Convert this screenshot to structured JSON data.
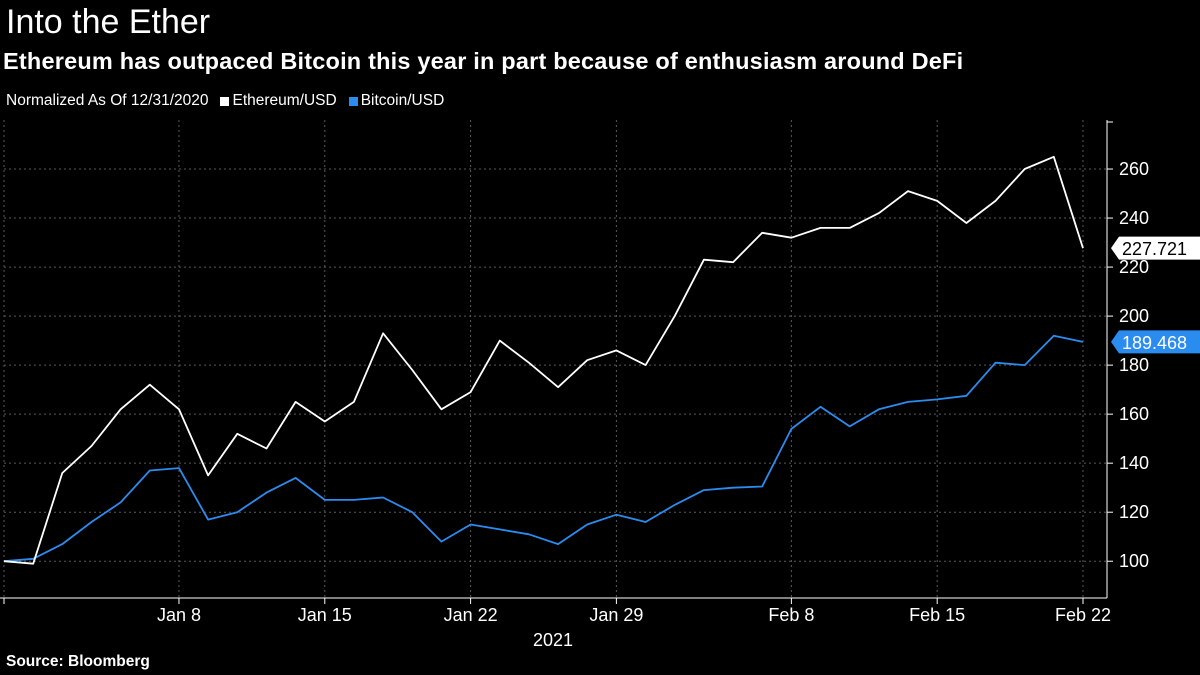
{
  "header": {
    "title": "Into the Ether",
    "subtitle": "Ethereum has outpaced Bitcoin this year in part because of enthusiasm around DeFi"
  },
  "legend": {
    "note": "Normalized As Of 12/31/2020",
    "items": [
      {
        "name": "Ethereum/USD",
        "color": "#ffffff"
      },
      {
        "name": "Bitcoin/USD",
        "color": "#2b8cf0"
      }
    ]
  },
  "source": "Source: Bloomberg",
  "chart_data": {
    "type": "line",
    "title": "Into the Ether",
    "subtitle": "Ethereum has outpaced Bitcoin this year in part because of enthusiasm around DeFi",
    "xlabel": "2021",
    "ylabel": "",
    "x": [
      0,
      1,
      2,
      3,
      4,
      5,
      6,
      7,
      8,
      9,
      10,
      11,
      12,
      13,
      14,
      15,
      16,
      17,
      18,
      19,
      20,
      21,
      22,
      23,
      24,
      25,
      26,
      27,
      28,
      29,
      30,
      31,
      32,
      33,
      34,
      35,
      36,
      37
    ],
    "x_ticks": [
      {
        "label": "Jan 8",
        "index": 6
      },
      {
        "label": "Jan 15",
        "index": 11
      },
      {
        "label": "Jan 22",
        "index": 16
      },
      {
        "label": "Jan 29",
        "index": 21
      },
      {
        "label": "Feb 8",
        "index": 27
      },
      {
        "label": "Feb 15",
        "index": 32
      },
      {
        "label": "Feb 22",
        "index": 37
      }
    ],
    "year_label": "2021",
    "ylim": [
      85,
      280
    ],
    "y_ticks": [
      100,
      120,
      140,
      160,
      180,
      200,
      220,
      240,
      260
    ],
    "grid": true,
    "series": [
      {
        "name": "Ethereum/USD",
        "color": "#ffffff",
        "values": [
          100,
          99,
          136,
          147,
          162,
          172,
          162,
          135,
          152,
          146,
          165,
          157,
          165,
          193,
          178,
          162,
          169,
          190,
          181,
          171,
          182,
          186,
          180,
          200,
          223,
          222,
          234,
          232,
          236,
          236,
          242,
          251,
          247,
          238,
          247,
          260,
          265,
          227.721
        ],
        "last_label": "227.721"
      },
      {
        "name": "Bitcoin/USD",
        "color": "#2b8cf0",
        "values": [
          100,
          101,
          107,
          116,
          124,
          137,
          138,
          117,
          120,
          128,
          134,
          125,
          125,
          126,
          120,
          108,
          115,
          113,
          111,
          107,
          115,
          119,
          116,
          123,
          129,
          130,
          130.5,
          154,
          163,
          155,
          162,
          165,
          166,
          167.5,
          181,
          180,
          192,
          189.468
        ],
        "last_label": "189.468"
      }
    ]
  }
}
